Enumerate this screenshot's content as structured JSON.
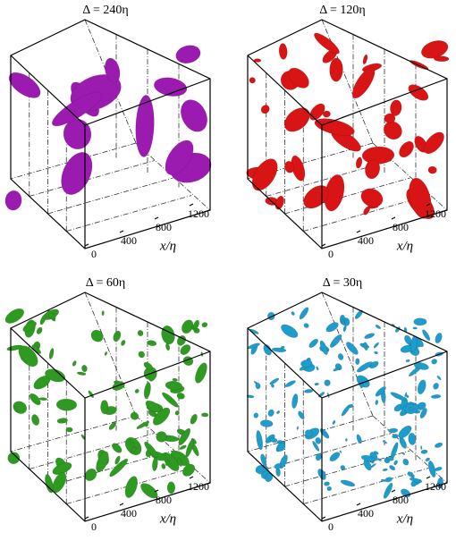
{
  "panels": [
    {
      "title": "Δ = 240η",
      "axis_label": "x/η",
      "ticks": [
        "0",
        "400",
        "800",
        "1200"
      ],
      "color": "#9b1bb0"
    },
    {
      "title": "Δ = 120η",
      "axis_label": "x/η",
      "ticks": [
        "0",
        "400",
        "800",
        "1200"
      ],
      "color": "#d81414"
    },
    {
      "title": "Δ = 60η",
      "axis_label": "x/η",
      "ticks": [
        "0",
        "400",
        "800",
        "1200"
      ],
      "color": "#2f9a22"
    },
    {
      "title": "Δ = 30η",
      "axis_label": "x/η",
      "ticks": [
        "0",
        "400",
        "800",
        "1200"
      ],
      "color": "#1e9ccc"
    }
  ]
}
